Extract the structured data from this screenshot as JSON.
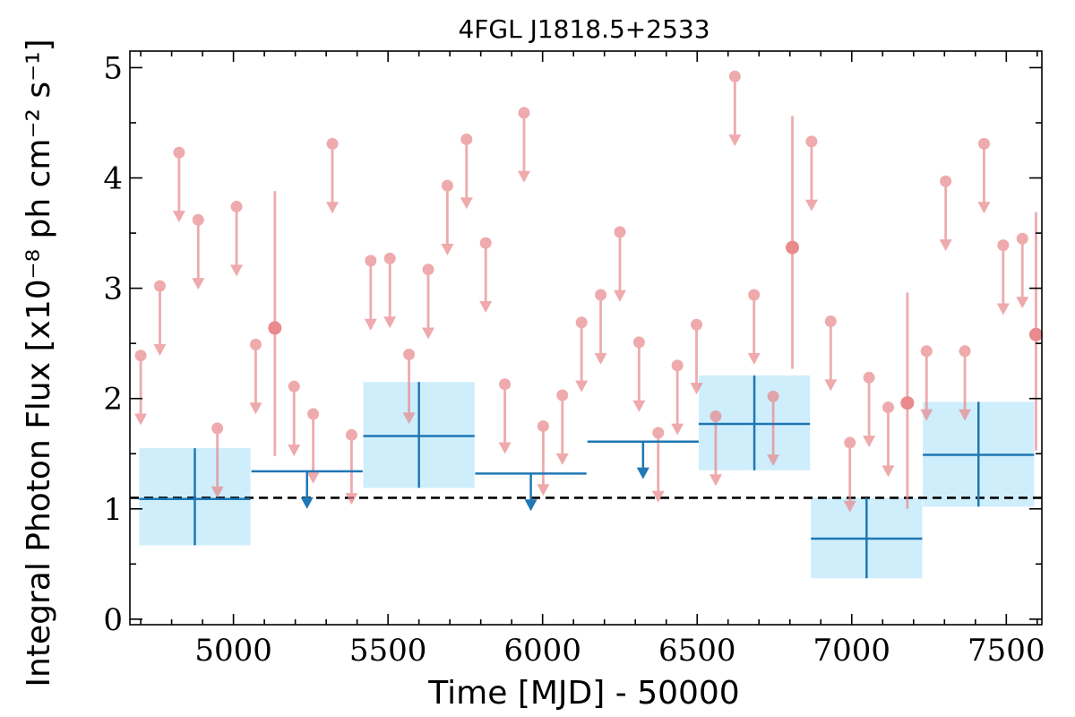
{
  "chart_data": {
    "type": "scatter",
    "title": "4FGL J1818.5+2533",
    "xlabel": "Time [MJD] - 50000",
    "ylabel": "Integral Photon Flux [x10⁻⁸ ph cm⁻² s⁻¹]",
    "xlim": [
      4665,
      7615
    ],
    "ylim": [
      -0.05,
      5.15
    ],
    "xticks": [
      5000,
      5500,
      6000,
      6500,
      7000,
      7500
    ],
    "yticks": [
      0,
      1,
      2,
      3,
      4,
      5
    ],
    "xtick_labels": [
      "5000",
      "5500",
      "6000",
      "6500",
      "7000",
      "7500"
    ],
    "ytick_labels": [
      "0",
      "1",
      "2",
      "3",
      "4",
      "5"
    ],
    "mean_flux": 1.1,
    "colors": {
      "monthly": "#e8878a",
      "yearly_line": "#1f77b4",
      "yearly_box": "#cfeefc",
      "mean_line": "#000000"
    },
    "series": [
      {
        "type": "monthly_upper_limits",
        "points": [
          {
            "x": 4700,
            "y": 2.39
          },
          {
            "x": 4762,
            "y": 3.02
          },
          {
            "x": 4824,
            "y": 4.23
          },
          {
            "x": 4886,
            "y": 3.62
          },
          {
            "x": 4948,
            "y": 1.73
          },
          {
            "x": 5010,
            "y": 3.74
          },
          {
            "x": 5072,
            "y": 2.49
          },
          {
            "x": 5196,
            "y": 2.11
          },
          {
            "x": 5258,
            "y": 1.86
          },
          {
            "x": 5320,
            "y": 4.31
          },
          {
            "x": 5382,
            "y": 1.67
          },
          {
            "x": 5444,
            "y": 3.25
          },
          {
            "x": 5506,
            "y": 3.27
          },
          {
            "x": 5568,
            "y": 2.4
          },
          {
            "x": 5630,
            "y": 3.17
          },
          {
            "x": 5692,
            "y": 3.93
          },
          {
            "x": 5754,
            "y": 4.35
          },
          {
            "x": 5816,
            "y": 3.41
          },
          {
            "x": 5878,
            "y": 2.13
          },
          {
            "x": 5940,
            "y": 4.59
          },
          {
            "x": 6002,
            "y": 1.75
          },
          {
            "x": 6064,
            "y": 2.03
          },
          {
            "x": 6126,
            "y": 2.69
          },
          {
            "x": 6188,
            "y": 2.94
          },
          {
            "x": 6250,
            "y": 3.51
          },
          {
            "x": 6312,
            "y": 2.51
          },
          {
            "x": 6374,
            "y": 1.69
          },
          {
            "x": 6436,
            "y": 2.3
          },
          {
            "x": 6498,
            "y": 2.67
          },
          {
            "x": 6560,
            "y": 1.84
          },
          {
            "x": 6622,
            "y": 4.92
          },
          {
            "x": 6684,
            "y": 2.94
          },
          {
            "x": 6746,
            "y": 2.02
          },
          {
            "x": 6870,
            "y": 4.33
          },
          {
            "x": 6932,
            "y": 2.7
          },
          {
            "x": 6994,
            "y": 1.6
          },
          {
            "x": 7056,
            "y": 2.19
          },
          {
            "x": 7118,
            "y": 1.92
          },
          {
            "x": 7242,
            "y": 2.43
          },
          {
            "x": 7304,
            "y": 3.97
          },
          {
            "x": 7366,
            "y": 2.43
          },
          {
            "x": 7428,
            "y": 4.31
          },
          {
            "x": 7490,
            "y": 3.39
          },
          {
            "x": 7552,
            "y": 3.45
          }
        ]
      },
      {
        "type": "monthly_detections",
        "points": [
          {
            "x": 5134,
            "y": 2.64,
            "y_low": 1.48,
            "y_high": 3.88
          },
          {
            "x": 6808,
            "y": 3.37,
            "y_low": 2.27,
            "y_high": 4.56
          },
          {
            "x": 7180,
            "y": 1.96,
            "y_low": 1.0,
            "y_high": 2.96
          },
          {
            "x": 7596,
            "y": 2.58,
            "y_low": 1.53,
            "y_high": 3.69
          }
        ]
      },
      {
        "type": "yearly_detections",
        "bins": [
          {
            "x_low": 4695,
            "x_high": 5055,
            "y": 1.09,
            "y_low": 0.67,
            "y_high": 1.55
          },
          {
            "x_low": 5420,
            "x_high": 5780,
            "y": 1.66,
            "y_low": 1.19,
            "y_high": 2.15
          },
          {
            "x_low": 6505,
            "x_high": 6865,
            "y": 1.77,
            "y_low": 1.35,
            "y_high": 2.21
          },
          {
            "x_low": 6868,
            "x_high": 7228,
            "y": 0.73,
            "y_low": 0.37,
            "y_high": 1.1
          },
          {
            "x_low": 7230,
            "x_high": 7590,
            "y": 1.49,
            "y_low": 1.02,
            "y_high": 1.97
          }
        ]
      },
      {
        "type": "yearly_upper_limits",
        "bins": [
          {
            "x_low": 5058,
            "x_high": 5418,
            "y": 1.34
          },
          {
            "x_low": 5782,
            "x_high": 6142,
            "y": 1.32
          },
          {
            "x_low": 6145,
            "x_high": 6505,
            "y": 1.61
          }
        ]
      }
    ]
  }
}
